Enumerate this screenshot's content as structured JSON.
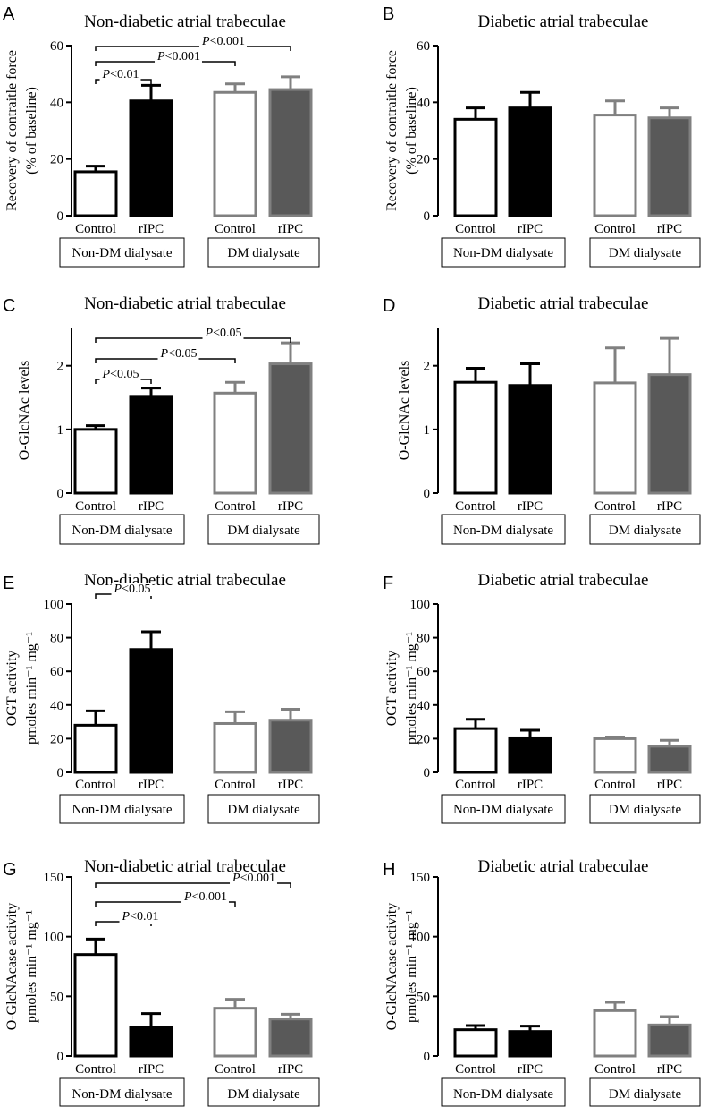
{
  "chart_data": [
    {
      "panel": "A",
      "type": "bar",
      "title": "Non-diabetic atrial trabeculae",
      "ylabel": [
        "Recovery of contraitle force",
        "(% of baseline)"
      ],
      "yticks": [
        0,
        20,
        40,
        60
      ],
      "ylim": [
        0,
        60
      ],
      "categories": [
        "Control",
        "rIPC",
        "Control",
        "rIPC"
      ],
      "groups": [
        "Non-DM dialysate",
        "DM dialysate"
      ],
      "values": [
        15.5,
        40.5,
        43.5,
        44.5
      ],
      "errors": [
        2.0,
        5.5,
        3.0,
        4.5
      ],
      "significance": [
        {
          "from": 0,
          "to": 1,
          "label": "<0.01"
        },
        {
          "from": 0,
          "to": 2,
          "label": "<0.001"
        },
        {
          "from": 0,
          "to": 3,
          "label": "<0.001"
        }
      ]
    },
    {
      "panel": "B",
      "type": "bar",
      "title": "Diabetic atrial trabeculae",
      "ylabel": [
        "Recovery of contraitle force",
        "(% of baseline)"
      ],
      "yticks": [
        0,
        20,
        40,
        60
      ],
      "ylim": [
        0,
        60
      ],
      "categories": [
        "Control",
        "rIPC",
        "Control",
        "rIPC"
      ],
      "groups": [
        "Non-DM dialysate",
        "DM dialysate"
      ],
      "values": [
        34.0,
        38.0,
        35.5,
        34.5
      ],
      "errors": [
        4.0,
        5.5,
        5.0,
        3.5
      ],
      "significance": []
    },
    {
      "panel": "C",
      "type": "bar",
      "title": "Non-diabetic atrial trabeculae",
      "ylabel": [
        "O-GlcNAc levels"
      ],
      "yticks": [
        0,
        1,
        2
      ],
      "ylim": [
        0,
        2.6
      ],
      "categories": [
        "Control",
        "rIPC",
        "Control",
        "rIPC"
      ],
      "groups": [
        "Non-DM dialysate",
        "DM dialysate"
      ],
      "values": [
        1.0,
        1.52,
        1.57,
        2.03
      ],
      "errors": [
        0.06,
        0.13,
        0.17,
        0.33
      ],
      "significance": [
        {
          "from": 0,
          "to": 1,
          "label": "<0.05"
        },
        {
          "from": 0,
          "to": 2,
          "label": "<0.05"
        },
        {
          "from": 0,
          "to": 3,
          "label": "<0.05"
        }
      ]
    },
    {
      "panel": "D",
      "type": "bar",
      "title": "Diabetic atrial trabeculae",
      "ylabel": [
        "O-GlcNAc levels"
      ],
      "yticks": [
        0,
        1,
        2
      ],
      "ylim": [
        0,
        2.6
      ],
      "categories": [
        "Control",
        "rIPC",
        "Control",
        "rIPC"
      ],
      "groups": [
        "Non-DM dialysate",
        "DM dialysate"
      ],
      "values": [
        1.74,
        1.69,
        1.73,
        1.86
      ],
      "errors": [
        0.22,
        0.34,
        0.55,
        0.57
      ],
      "significance": []
    },
    {
      "panel": "E",
      "type": "bar",
      "title": "Non-diabetic atrial trabeculae",
      "ylabel": [
        "OGT activity",
        "pmoles min⁻¹ mg⁻¹"
      ],
      "yticks": [
        0,
        20,
        40,
        60,
        80,
        100
      ],
      "ylim": [
        0,
        100
      ],
      "categories": [
        "Control",
        "rIPC",
        "Control",
        "rIPC"
      ],
      "groups": [
        "Non-DM dialysate",
        "DM dialysate"
      ],
      "values": [
        28,
        73,
        29,
        31
      ],
      "errors": [
        8.5,
        10.5,
        7.0,
        6.5
      ],
      "significance": [
        {
          "from": 0,
          "to": 1,
          "label": "<0.05"
        }
      ]
    },
    {
      "panel": "F",
      "type": "bar",
      "title": "Diabetic atrial trabeculae",
      "ylabel": [
        "OGT activity",
        "pmoles min⁻¹ mg⁻¹"
      ],
      "yticks": [
        0,
        20,
        40,
        60,
        80,
        100
      ],
      "ylim": [
        0,
        100
      ],
      "categories": [
        "Control",
        "rIPC",
        "Control",
        "rIPC"
      ],
      "groups": [
        "Non-DM dialysate",
        "DM dialysate"
      ],
      "values": [
        26,
        20.5,
        20,
        15.5
      ],
      "errors": [
        5.5,
        4.5,
        1.0,
        3.5
      ],
      "significance": []
    },
    {
      "panel": "G",
      "type": "bar",
      "title": "Non-diabetic atrial trabeculae",
      "ylabel": [
        "O-GlcNAcase activity",
        "pmoles min⁻¹ mg⁻¹"
      ],
      "yticks": [
        0,
        50,
        100,
        150
      ],
      "ylim": [
        0,
        150
      ],
      "categories": [
        "Control",
        "rIPC",
        "Control",
        "rIPC"
      ],
      "groups": [
        "Non-DM dialysate",
        "DM dialysate"
      ],
      "values": [
        85,
        24,
        40,
        31
      ],
      "errors": [
        13,
        11.5,
        7.5,
        4.0
      ],
      "significance": [
        {
          "from": 0,
          "to": 1,
          "label": "<0.01"
        },
        {
          "from": 0,
          "to": 2,
          "label": "<0.001"
        },
        {
          "from": 0,
          "to": 3,
          "label": "<0.001"
        }
      ]
    },
    {
      "panel": "H",
      "type": "bar",
      "title": "Diabetic atrial trabeculae",
      "ylabel": [
        "O-GlcNAcase activity",
        "pmoles min⁻¹ mg⁻¹"
      ],
      "yticks": [
        0,
        50,
        100,
        150
      ],
      "ylim": [
        0,
        150
      ],
      "categories": [
        "Control",
        "rIPC",
        "Control",
        "rIPC"
      ],
      "groups": [
        "Non-DM dialysate",
        "DM dialysate"
      ],
      "values": [
        22,
        20.5,
        38,
        26
      ],
      "errors": [
        3.5,
        4.5,
        7.0,
        7.0
      ],
      "significance": []
    }
  ],
  "bar_styles": [
    {
      "fill": "#ffffff",
      "stroke": "#000000"
    },
    {
      "fill": "#000000",
      "stroke": "#000000"
    },
    {
      "fill": "#ffffff",
      "stroke": "#808080"
    },
    {
      "fill": "#595959",
      "stroke": "#808080"
    }
  ],
  "significance_prefix": "P"
}
